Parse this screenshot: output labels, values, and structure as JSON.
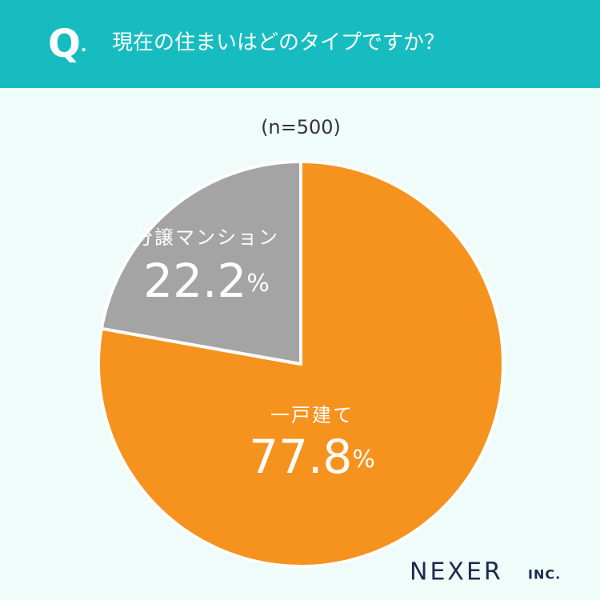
{
  "chart_data": {
    "type": "pie",
    "question_label": "Q.",
    "title": "現在の住まいはどのタイプですか？",
    "subtitle": "(n=500)",
    "categories": [
      "一戸建て",
      "分譲マンション"
    ],
    "values": [
      77.8,
      22.2
    ],
    "value_labels": [
      "77.8%",
      "22.2%"
    ],
    "colors": [
      "#f6921e",
      "#a4a4a4"
    ],
    "logo": {
      "name": "NEXER",
      "suffix": "INC."
    }
  }
}
